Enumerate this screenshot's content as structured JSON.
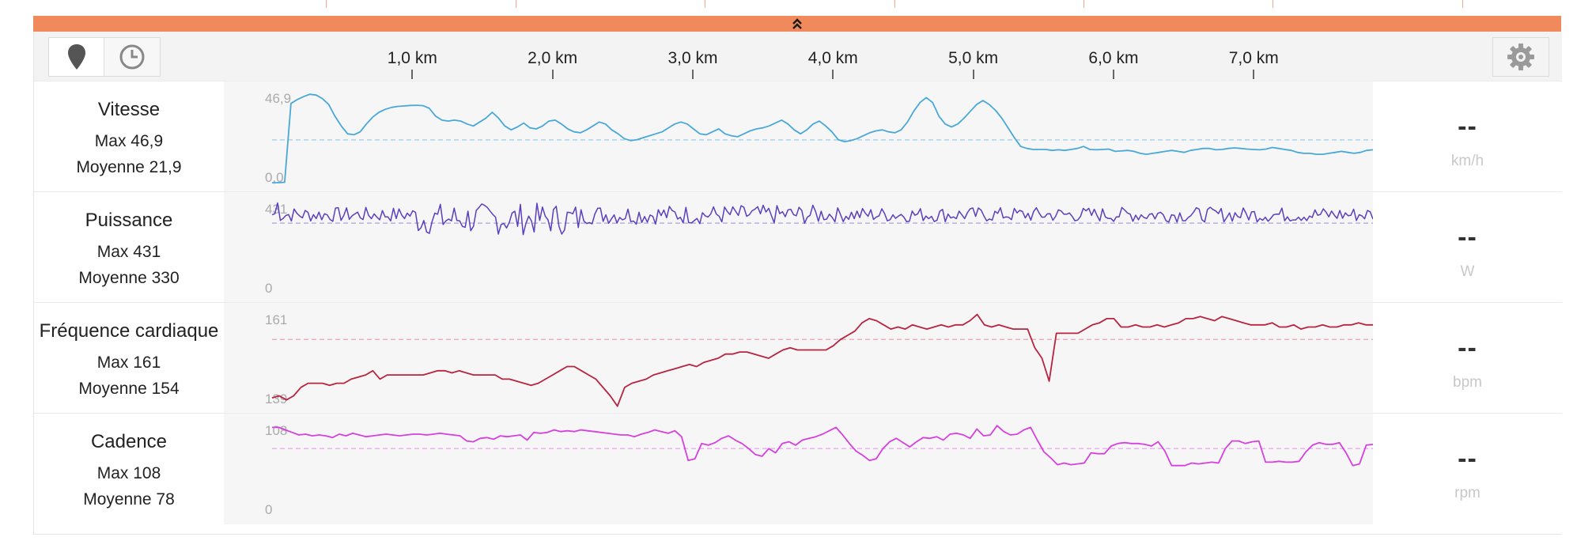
{
  "top_ticks_km": [
    1,
    2,
    3,
    4,
    5,
    6,
    7
  ],
  "toolbar": {
    "buttons": [
      {
        "icon": "map-pin-icon",
        "active": true
      },
      {
        "icon": "clock-icon",
        "active": false
      }
    ],
    "settings_icon": "gear-icon",
    "collapse_icon": "double-chevron-up-icon"
  },
  "axis": {
    "labels": [
      "1,0 km",
      "2,0 km",
      "3,0 km",
      "4,0 km",
      "5,0 km",
      "6,0 km",
      "7,0 km"
    ],
    "values_km": [
      1,
      2,
      3,
      4,
      5,
      6,
      7
    ],
    "range_km": [
      0,
      7.85
    ]
  },
  "metrics": [
    {
      "name": "Vitesse",
      "max_label": "Max 46,9",
      "avg_label": "Moyenne 21,9",
      "y_max_label": "46,9",
      "y_min_label": "0,0",
      "unit": "km/h",
      "value": "--",
      "color": "#4aa8d8",
      "avg_color": "#a9d3ee",
      "ylim": [
        0,
        46.9
      ],
      "avg": 21.9,
      "series": [
        0,
        0,
        0.2,
        40.5,
        42.5,
        44,
        45.2,
        44.8,
        43,
        40,
        34,
        29,
        25,
        24.5,
        26,
        30,
        33.5,
        36,
        37.5,
        38.5,
        39,
        39.2,
        39.5,
        39.6,
        39.4,
        38,
        34,
        32,
        31.5,
        32,
        31.5,
        30,
        29,
        31,
        33,
        36,
        33,
        29,
        27,
        28.5,
        30.5,
        28,
        27.5,
        29,
        31.5,
        32,
        30,
        27.5,
        26,
        25.5,
        27,
        29,
        31,
        30,
        27,
        25,
        22.5,
        21.5,
        22,
        23,
        24,
        25,
        26,
        28,
        30,
        31,
        30,
        27.5,
        25,
        24.5,
        26,
        27.5,
        25,
        24,
        23.5,
        25,
        26.5,
        27.5,
        28,
        29,
        30.5,
        32,
        30,
        27,
        25,
        27,
        30,
        31.5,
        29,
        26,
        22,
        21,
        21.5,
        22.5,
        24,
        25.5,
        26.5,
        27,
        26,
        25.5,
        27,
        31,
        36.5,
        41,
        43.5,
        41,
        34,
        30,
        28.5,
        30,
        33,
        36.5,
        40,
        42,
        40,
        37,
        33,
        28,
        23,
        18.5,
        17.5,
        17,
        17,
        17,
        16.5,
        16.8,
        16.5,
        17,
        17.5,
        18.5,
        17,
        16.8,
        17,
        17.2,
        16,
        16.2,
        16.5,
        16,
        15,
        14.5,
        15,
        15.5,
        16,
        16.5,
        16,
        15.5,
        16.5,
        17,
        17.5,
        17.5,
        16.8,
        17,
        17.5,
        17.8,
        17.5,
        17.2,
        17,
        16.8,
        17.2,
        18,
        17.5,
        17,
        16.5,
        15.5,
        15,
        15,
        14.5,
        14.5,
        15,
        15.5,
        16,
        15.5,
        15,
        15.5,
        16.5,
        16.8
      ]
    },
    {
      "name": "Puissance",
      "max_label": "Max 431",
      "avg_label": "Moyenne 330",
      "y_max_label": "431",
      "y_min_label": "0",
      "unit": "W",
      "value": "--",
      "color": "#5b3fbf",
      "avg_color": "#b9aee6",
      "ylim": [
        0,
        431
      ],
      "avg": 330,
      "noisy": true
    },
    {
      "name": "Fréquence cardiaque",
      "max_label": "Max 161",
      "avg_label": "Moyenne 154",
      "y_max_label": "161",
      "y_min_label": "139",
      "unit": "bpm",
      "value": "--",
      "color": "#b8243f",
      "avg_color": "#eab0bc",
      "ylim": [
        139,
        161
      ],
      "avg": 154.5,
      "series": [
        140.5,
        141,
        140,
        141,
        143,
        144,
        144,
        144,
        143.5,
        144,
        144,
        145,
        145.5,
        146,
        147,
        145,
        146,
        146,
        146,
        146,
        146,
        146,
        146.5,
        147,
        147,
        146.5,
        147,
        146.5,
        146,
        146,
        146,
        146,
        145,
        145,
        144.5,
        144,
        143.5,
        144,
        145,
        146,
        147,
        148,
        148,
        147,
        146,
        145,
        143,
        141,
        138.5,
        143,
        144,
        144.5,
        145,
        146,
        146.5,
        147,
        147.5,
        148,
        148.5,
        148,
        149,
        149.5,
        150,
        151,
        151,
        151.5,
        151.5,
        151,
        150.5,
        150,
        151,
        152,
        152.5,
        152,
        152,
        152,
        152,
        152,
        153,
        154.5,
        155.5,
        156.5,
        158.5,
        159.5,
        159,
        158,
        157,
        157.5,
        157,
        158,
        157.5,
        157,
        157.5,
        158,
        157.5,
        158,
        158,
        159,
        160.5,
        158,
        157.5,
        158,
        157.5,
        157,
        157,
        157,
        152.5,
        150,
        144.5,
        156,
        156,
        156,
        156,
        157,
        158,
        158.5,
        159.5,
        159.5,
        157.5,
        157.5,
        158,
        157.5,
        157.5,
        158,
        157.5,
        158,
        158.5,
        159.5,
        159.5,
        160,
        159.5,
        159,
        160,
        159.5,
        159,
        158.5,
        158,
        158,
        158,
        158.5,
        157.5,
        157.5,
        158,
        157,
        157.5,
        157.5,
        158,
        157.5,
        157.5,
        158,
        158,
        158.5,
        158,
        158
      ]
    },
    {
      "name": "Cadence",
      "max_label": "Max 108",
      "avg_label": "Moyenne 78",
      "y_max_label": "108",
      "y_min_label": "0",
      "unit": "rpm",
      "value": "--",
      "color": "#d640df",
      "avg_color": "#e8b2ee",
      "ylim": [
        0,
        108
      ],
      "avg": 78,
      "series": [
        103,
        103,
        100,
        97,
        94,
        95,
        93,
        94,
        93,
        91,
        95,
        93,
        96,
        94,
        92,
        93,
        94,
        95,
        94,
        93,
        94,
        95,
        95,
        94,
        95,
        96,
        95,
        94,
        93,
        87,
        86,
        90,
        91,
        89,
        93,
        92,
        93,
        94,
        88,
        97,
        96,
        97,
        100,
        98,
        99,
        98,
        100,
        99,
        98,
        97,
        96,
        95,
        94,
        94,
        92,
        95,
        97,
        100,
        98,
        96,
        99,
        92,
        64,
        66,
        84,
        82,
        85,
        90,
        93,
        88,
        84,
        78,
        71,
        69,
        78,
        73,
        84,
        86,
        82,
        88,
        90,
        92,
        95,
        99,
        103,
        94,
        84,
        75,
        70,
        64,
        66,
        78,
        86,
        90,
        85,
        80,
        86,
        91,
        90,
        92,
        88,
        95,
        96,
        94,
        90,
        101,
        93,
        94,
        105,
        98,
        94,
        95,
        100,
        103,
        88,
        74,
        67,
        59,
        61,
        59,
        60,
        61,
        73,
        72,
        72,
        81,
        84,
        85,
        84,
        84,
        83,
        81,
        86,
        75,
        58,
        58,
        58,
        61,
        60,
        61,
        62,
        61,
        78,
        87,
        87,
        84,
        86,
        87,
        62,
        62,
        63,
        62,
        62,
        63,
        74,
        82,
        85,
        83,
        83,
        85,
        73,
        58,
        60,
        82,
        83
      ]
    }
  ]
}
